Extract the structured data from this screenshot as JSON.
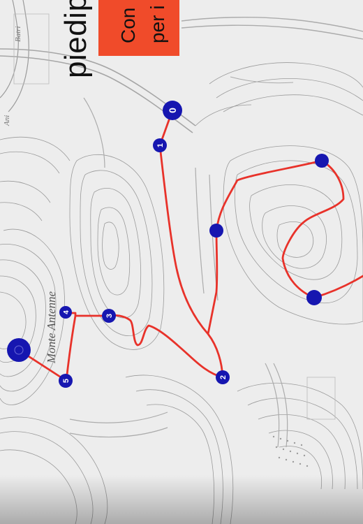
{
  "header": {
    "title_fragment": "piedip",
    "notice_line1": "Con",
    "notice_line2": "per i"
  },
  "map": {
    "annotations": {
      "mountain_label": "Monte Antenne",
      "road_label_1": "Ani",
      "road_label_2": "Batri"
    },
    "colors": {
      "route": "#e8322a",
      "marker": "#1616b0",
      "marker_text": "#ffffff",
      "contour": "#8c8c8c",
      "notice_bg": "#f04b2a"
    },
    "waypoints_labels": [
      "0",
      "1",
      "3",
      "4",
      "5",
      "2"
    ]
  }
}
